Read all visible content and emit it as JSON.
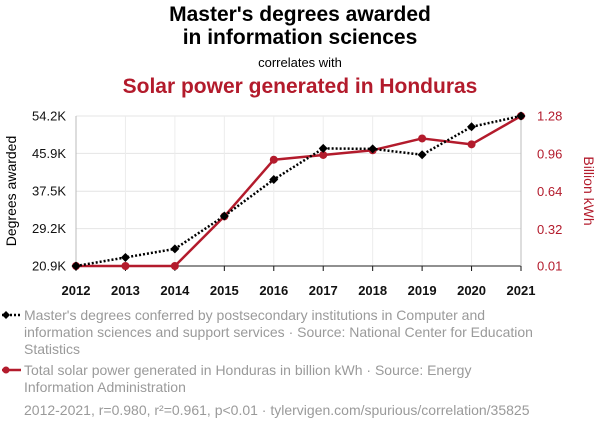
{
  "title_line1": "Master's degrees awarded",
  "title_line2": "in information sciences",
  "subtitle": "correlates with",
  "title2": "Solar power generated in Honduras",
  "colors": {
    "series1": "#000000",
    "series2": "#b31b2c",
    "muted": "#9a9a9a"
  },
  "legend": {
    "series1": "Master's degrees conferred by postsecondary institutions in Computer and information sciences and support services · Source: National Center for Education Statistics",
    "series2": "Total solar power generated in Honduras in billion kWh · Source: Energy Information Administration"
  },
  "footer": "2012-2021, r=0.980, r²=0.961, p<0.01 · tylervigen.com/spurious/correlation/35825",
  "chart_data": {
    "type": "line",
    "x": [
      2012,
      2013,
      2014,
      2015,
      2016,
      2017,
      2018,
      2019,
      2020,
      2021
    ],
    "x_tick_labels": [
      "2012",
      "2013",
      "2014",
      "2015",
      "2016",
      "2017",
      "2018",
      "2019",
      "2020",
      "2021"
    ],
    "ylabel_left": "Degrees awarded",
    "ylabel_right": "Billion kWh",
    "y_left_ticks": [
      20900,
      29200,
      37500,
      45900,
      54200
    ],
    "y_left_tick_labels": [
      "20.9K",
      "29.2K",
      "37.5K",
      "45.9K",
      "54.2K"
    ],
    "y_left_lim": [
      20900,
      54200
    ],
    "y_right_ticks": [
      0.01,
      0.32,
      0.64,
      0.96,
      1.28
    ],
    "y_right_tick_labels": [
      "0.01",
      "0.32",
      "0.64",
      "0.96",
      "1.28"
    ],
    "y_right_lim": [
      0.01,
      1.28
    ],
    "grid": true,
    "series": [
      {
        "axis": "left",
        "style": "dotted",
        "marker": "diamond",
        "values": [
          20900,
          22800,
          24700,
          32000,
          40100,
          47000,
          46900,
          45600,
          51800,
          54200
        ]
      },
      {
        "axis": "right",
        "style": "solid",
        "marker": "circle",
        "values": [
          0.01,
          0.01,
          0.01,
          0.43,
          0.91,
          0.95,
          0.99,
          1.09,
          1.04,
          1.28
        ]
      }
    ]
  }
}
